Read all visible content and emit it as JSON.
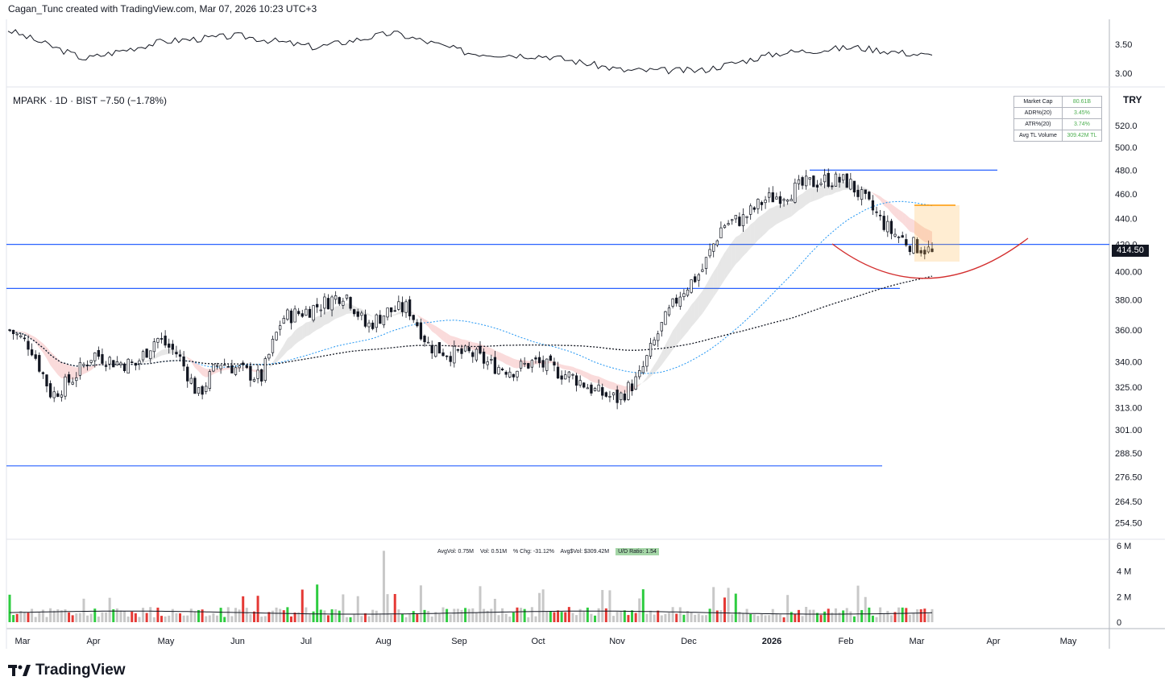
{
  "header": {
    "title": "Cagan_Tunc created with TradingView.com, Mar 07, 2026 10:23 UTC+3"
  },
  "legend": {
    "symbol_line": "MPARK · 1D · BIST  −7.50 (−1.78%)"
  },
  "currency": "TRY",
  "last_price": "414.50",
  "stats_table": [
    {
      "label": "Market Cap",
      "value": "80.61B"
    },
    {
      "label": "ADR%(20)",
      "value": "3.45%"
    },
    {
      "label": "ATR%(20)",
      "value": "3.74%"
    },
    {
      "label": "Avg TL Volume",
      "value": "309.42M TL"
    }
  ],
  "volume_info": {
    "avgvol": "AvgVol: 0.75M",
    "vol": "Vol: 0.51M",
    "chg": "% Chg: -31.12%",
    "avgdollar": "Avg$Vol: $309.42M",
    "ud_ratio": "U/D Ratio: 1.54"
  },
  "logo_text": "TradingView",
  "colors": {
    "up": "#4caf50",
    "down": "#131722",
    "level_line": "#2962ff",
    "cup_arc": "#d32f2f",
    "vol_up": "#2ecc40",
    "vol_down": "#e53935",
    "vol_neutral": "#c8c8c8"
  },
  "chart_data": [
    {
      "type": "line",
      "panel": "relative-strength",
      "x": [
        "Mar",
        "Apr",
        "May",
        "Jun",
        "Jul",
        "Aug",
        "Sep",
        "Oct",
        "Nov",
        "Dec",
        "2026",
        "Feb",
        "Mar"
      ],
      "series": [
        {
          "values": [
            3.75,
            3.25,
            3.55,
            3.65,
            3.45,
            3.7,
            3.35,
            3.3,
            3.05,
            3.05,
            3.35,
            3.45,
            3.3
          ]
        }
      ],
      "yticks": [
        "3.50",
        "3.00"
      ]
    },
    {
      "type": "candlestick",
      "panel": "price",
      "x_tick_labels": [
        "Mar",
        "Apr",
        "May",
        "Jun",
        "Jul",
        "Aug",
        "Sep",
        "Oct",
        "Nov",
        "Dec",
        "2026",
        "Feb",
        "Mar",
        "Apr",
        "May"
      ],
      "yticks": [
        "520.0",
        "500.0",
        "480.0",
        "460.0",
        "440.0",
        "420.0",
        "400.00",
        "380.00",
        "360.00",
        "340.00",
        "325.00",
        "313.00",
        "301.00",
        "288.50",
        "276.50",
        "264.50",
        "254.50"
      ],
      "y_scale": "log",
      "close_path": [
        [
          0,
          360
        ],
        [
          1,
          350
        ],
        [
          2,
          320
        ],
        [
          3,
          330
        ],
        [
          4,
          345
        ],
        [
          5,
          340
        ],
        [
          6,
          338
        ],
        [
          7,
          355
        ],
        [
          8,
          345
        ],
        [
          9,
          320
        ],
        [
          10,
          340
        ],
        [
          11,
          335
        ],
        [
          12,
          330
        ],
        [
          13,
          368
        ],
        [
          14,
          372
        ],
        [
          15,
          378
        ],
        [
          16,
          385
        ],
        [
          17,
          362
        ],
        [
          18,
          372
        ],
        [
          19,
          375
        ],
        [
          20,
          350
        ],
        [
          21,
          345
        ],
        [
          22,
          345
        ],
        [
          23,
          338
        ],
        [
          24,
          335
        ],
        [
          25,
          340
        ],
        [
          26,
          335
        ],
        [
          27,
          330
        ],
        [
          28,
          322
        ],
        [
          29,
          318
        ],
        [
          30,
          330
        ],
        [
          31,
          360
        ],
        [
          32,
          385
        ],
        [
          33,
          400
        ],
        [
          34,
          435
        ],
        [
          35,
          440
        ],
        [
          36,
          455
        ],
        [
          37,
          460
        ],
        [
          38,
          468
        ],
        [
          39,
          472
        ],
        [
          40,
          470
        ],
        [
          41,
          450
        ],
        [
          42,
          430
        ],
        [
          43,
          420
        ],
        [
          44,
          414.5
        ]
      ],
      "levels": [
        {
          "price": 480,
          "label": "resistance"
        },
        {
          "price": 420
        },
        {
          "price": 388
        },
        {
          "price": 282
        }
      ],
      "moving_averages": [
        "short EMA band",
        "50 SMA (dotted blue)",
        "200 SMA (dotted black)"
      ]
    },
    {
      "type": "bar",
      "panel": "volume",
      "yticks": [
        "6 M",
        "4 M",
        "2 M",
        "0"
      ],
      "ylim": [
        0,
        6
      ],
      "peak_value": 5.6,
      "typical_value": 0.75
    }
  ]
}
